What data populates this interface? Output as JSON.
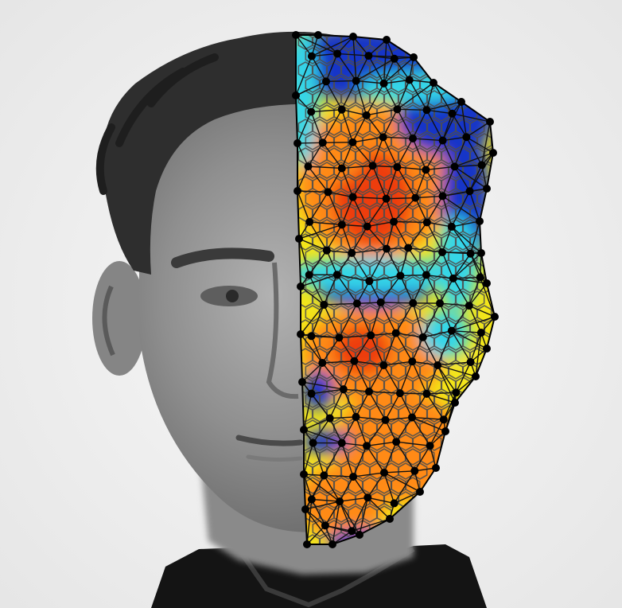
{
  "image": {
    "subject": "portrait-photo-face-mesh-overlay",
    "left_half": "grayscale-photo",
    "right_half": "heatmap-with-triangle-mesh"
  },
  "colors": {
    "background": "#f2f2f2",
    "hair": "#2f2f2f",
    "skin_gray": "#8b8b8b",
    "shirt": "#111111",
    "heat_blue": "#1536c8",
    "heat_cyan": "#34d6e8",
    "heat_yellow": "#f3e51a",
    "heat_orange": "#ff8a16",
    "heat_red": "#ee3d10",
    "mesh_line": "#111111",
    "voronoi_line": "#4e4e4e",
    "node": "#000000"
  }
}
